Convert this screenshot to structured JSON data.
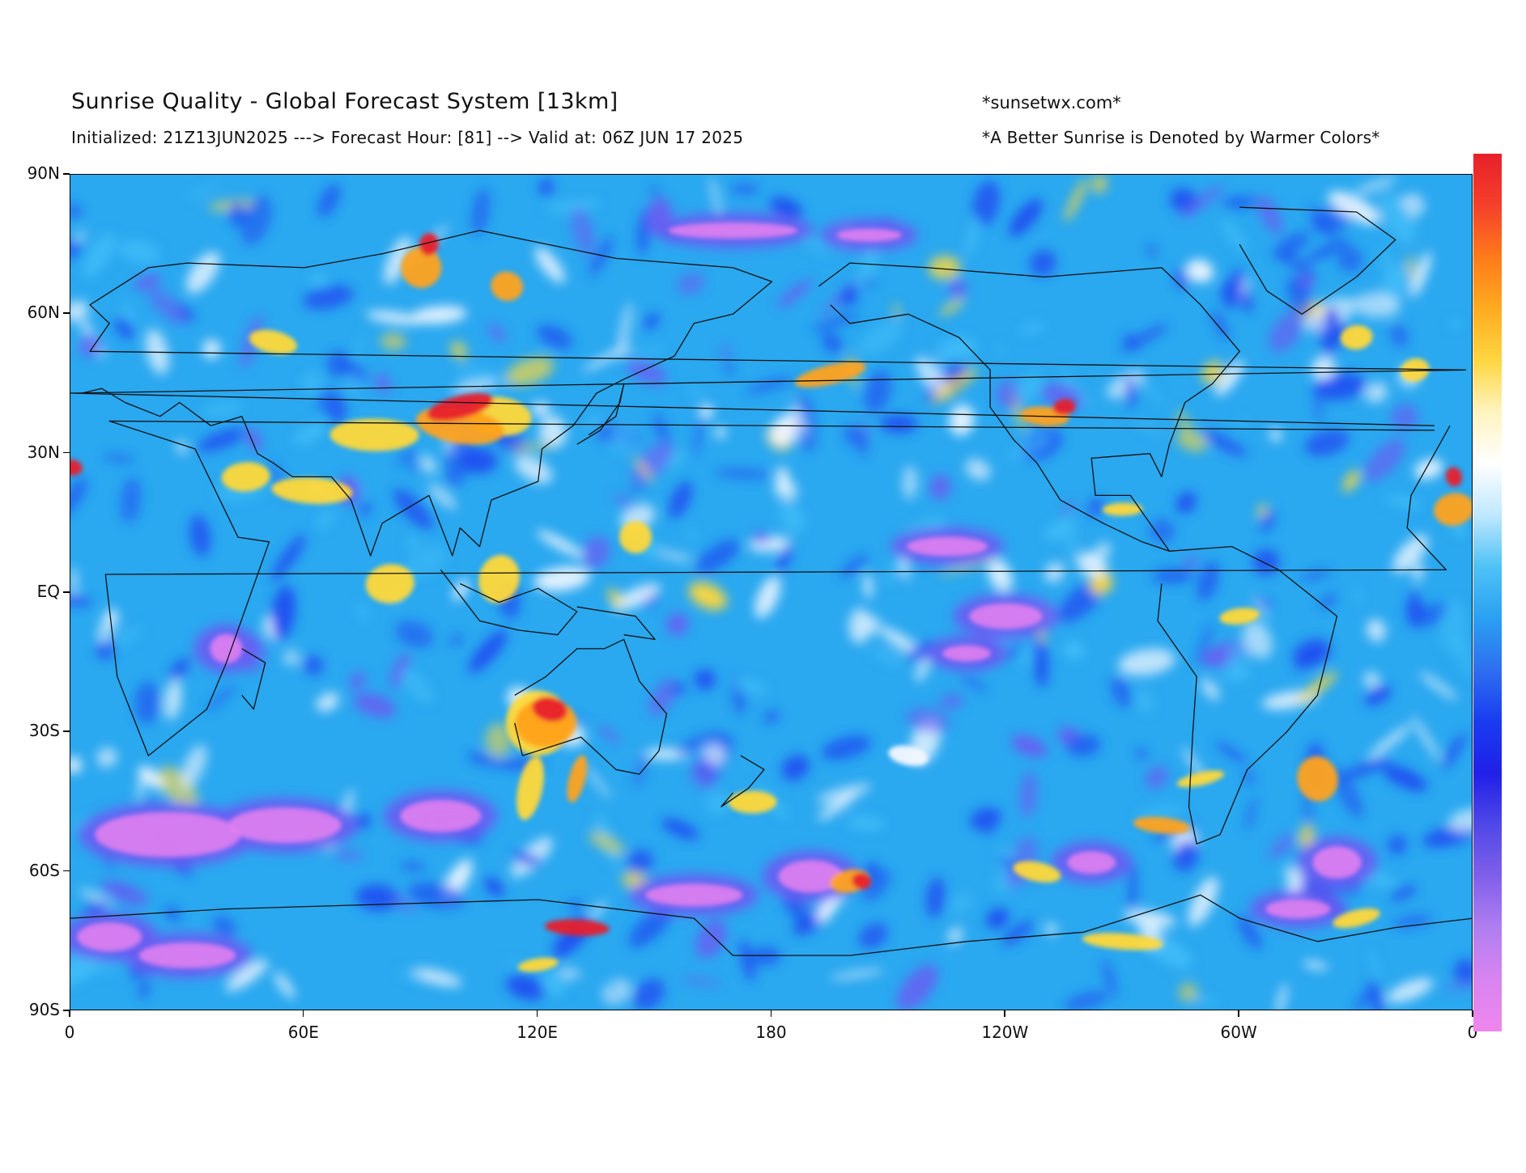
{
  "header": {
    "title": "Sunrise Quality - Global Forecast System [13km]",
    "subtitle": "Initialized: 21Z13JUN2025 ---> Forecast Hour: [81] --> Valid at: 06Z JUN 17 2025",
    "site": "*sunsetwx.com*",
    "note": "*A Better Sunrise is Denoted by Warmer Colors*"
  },
  "axes": {
    "y_ticks": [
      "90N",
      "60N",
      "30N",
      "EQ",
      "30S",
      "60S",
      "90S"
    ],
    "x_ticks": [
      "0",
      "60E",
      "120E",
      "180",
      "120W",
      "60W",
      "0"
    ],
    "lat_range": [
      90,
      -90
    ],
    "lon_range": [
      0,
      360
    ]
  },
  "colors": {
    "ocean_base": "#2aa8f0",
    "deep_blue": "#1e4df0",
    "violet": "#6a5cf2",
    "pink": "#e07ff0",
    "white": "#f4f8ff",
    "yellow": "#ffd83a",
    "orange": "#ffa21a",
    "red": "#e8202a",
    "coastline": "#111111"
  },
  "colorbar": {
    "stops": [
      "#e8202a",
      "#f5402a",
      "#ff7a1a",
      "#ffab20",
      "#ffd640",
      "#fff4c0",
      "#ffffff",
      "#bfe8ff",
      "#4ec2f5",
      "#2aa0f2",
      "#2e6ff0",
      "#1a3cf0",
      "#2020e8",
      "#5048e8",
      "#8060ea",
      "#b07ef0",
      "#d884f0",
      "#ef86ec"
    ]
  }
}
